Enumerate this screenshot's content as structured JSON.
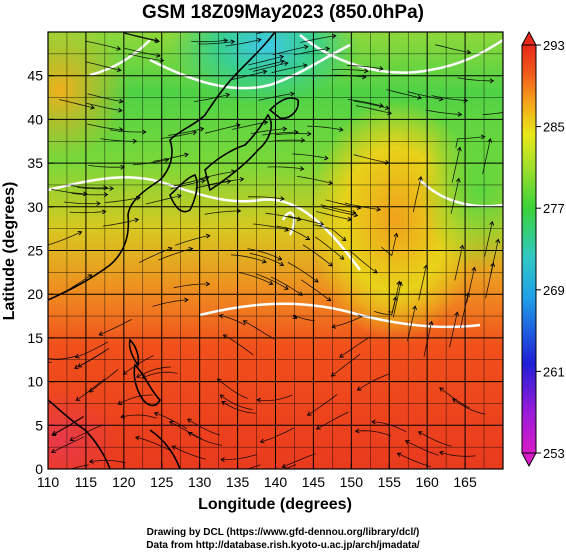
{
  "title": "GSM 18Z09May2023 (850.0hPa)",
  "map": {
    "xlabel": "Longitude (degrees)",
    "ylabel": "Latitude  (degrees)",
    "xlim": [
      110,
      170
    ],
    "ylim": [
      0,
      50
    ],
    "xticks": [
      110,
      115,
      120,
      125,
      130,
      135,
      140,
      145,
      150,
      155,
      160,
      165
    ],
    "yticks": [
      0,
      5,
      10,
      15,
      20,
      25,
      30,
      35,
      40,
      45
    ],
    "grid": true
  },
  "colorbar": {
    "range": [
      253,
      293
    ],
    "ticks": [
      253,
      261,
      269,
      277,
      285,
      293
    ],
    "colors": [
      "#d81bc8",
      "#1f1fd6",
      "#1f9fe8",
      "#31c9c4",
      "#3ad23a",
      "#9fe02a",
      "#e8e81a",
      "#f5a31a",
      "#f15a1a",
      "#e8281a"
    ]
  },
  "credits": {
    "line1": "Drawing by DCL (https://www.gfd-dennou.org/library/dcl/)",
    "line2": "Data from http://database.rish.kyoto-u.ac.jp/arch/jmadata/"
  }
}
